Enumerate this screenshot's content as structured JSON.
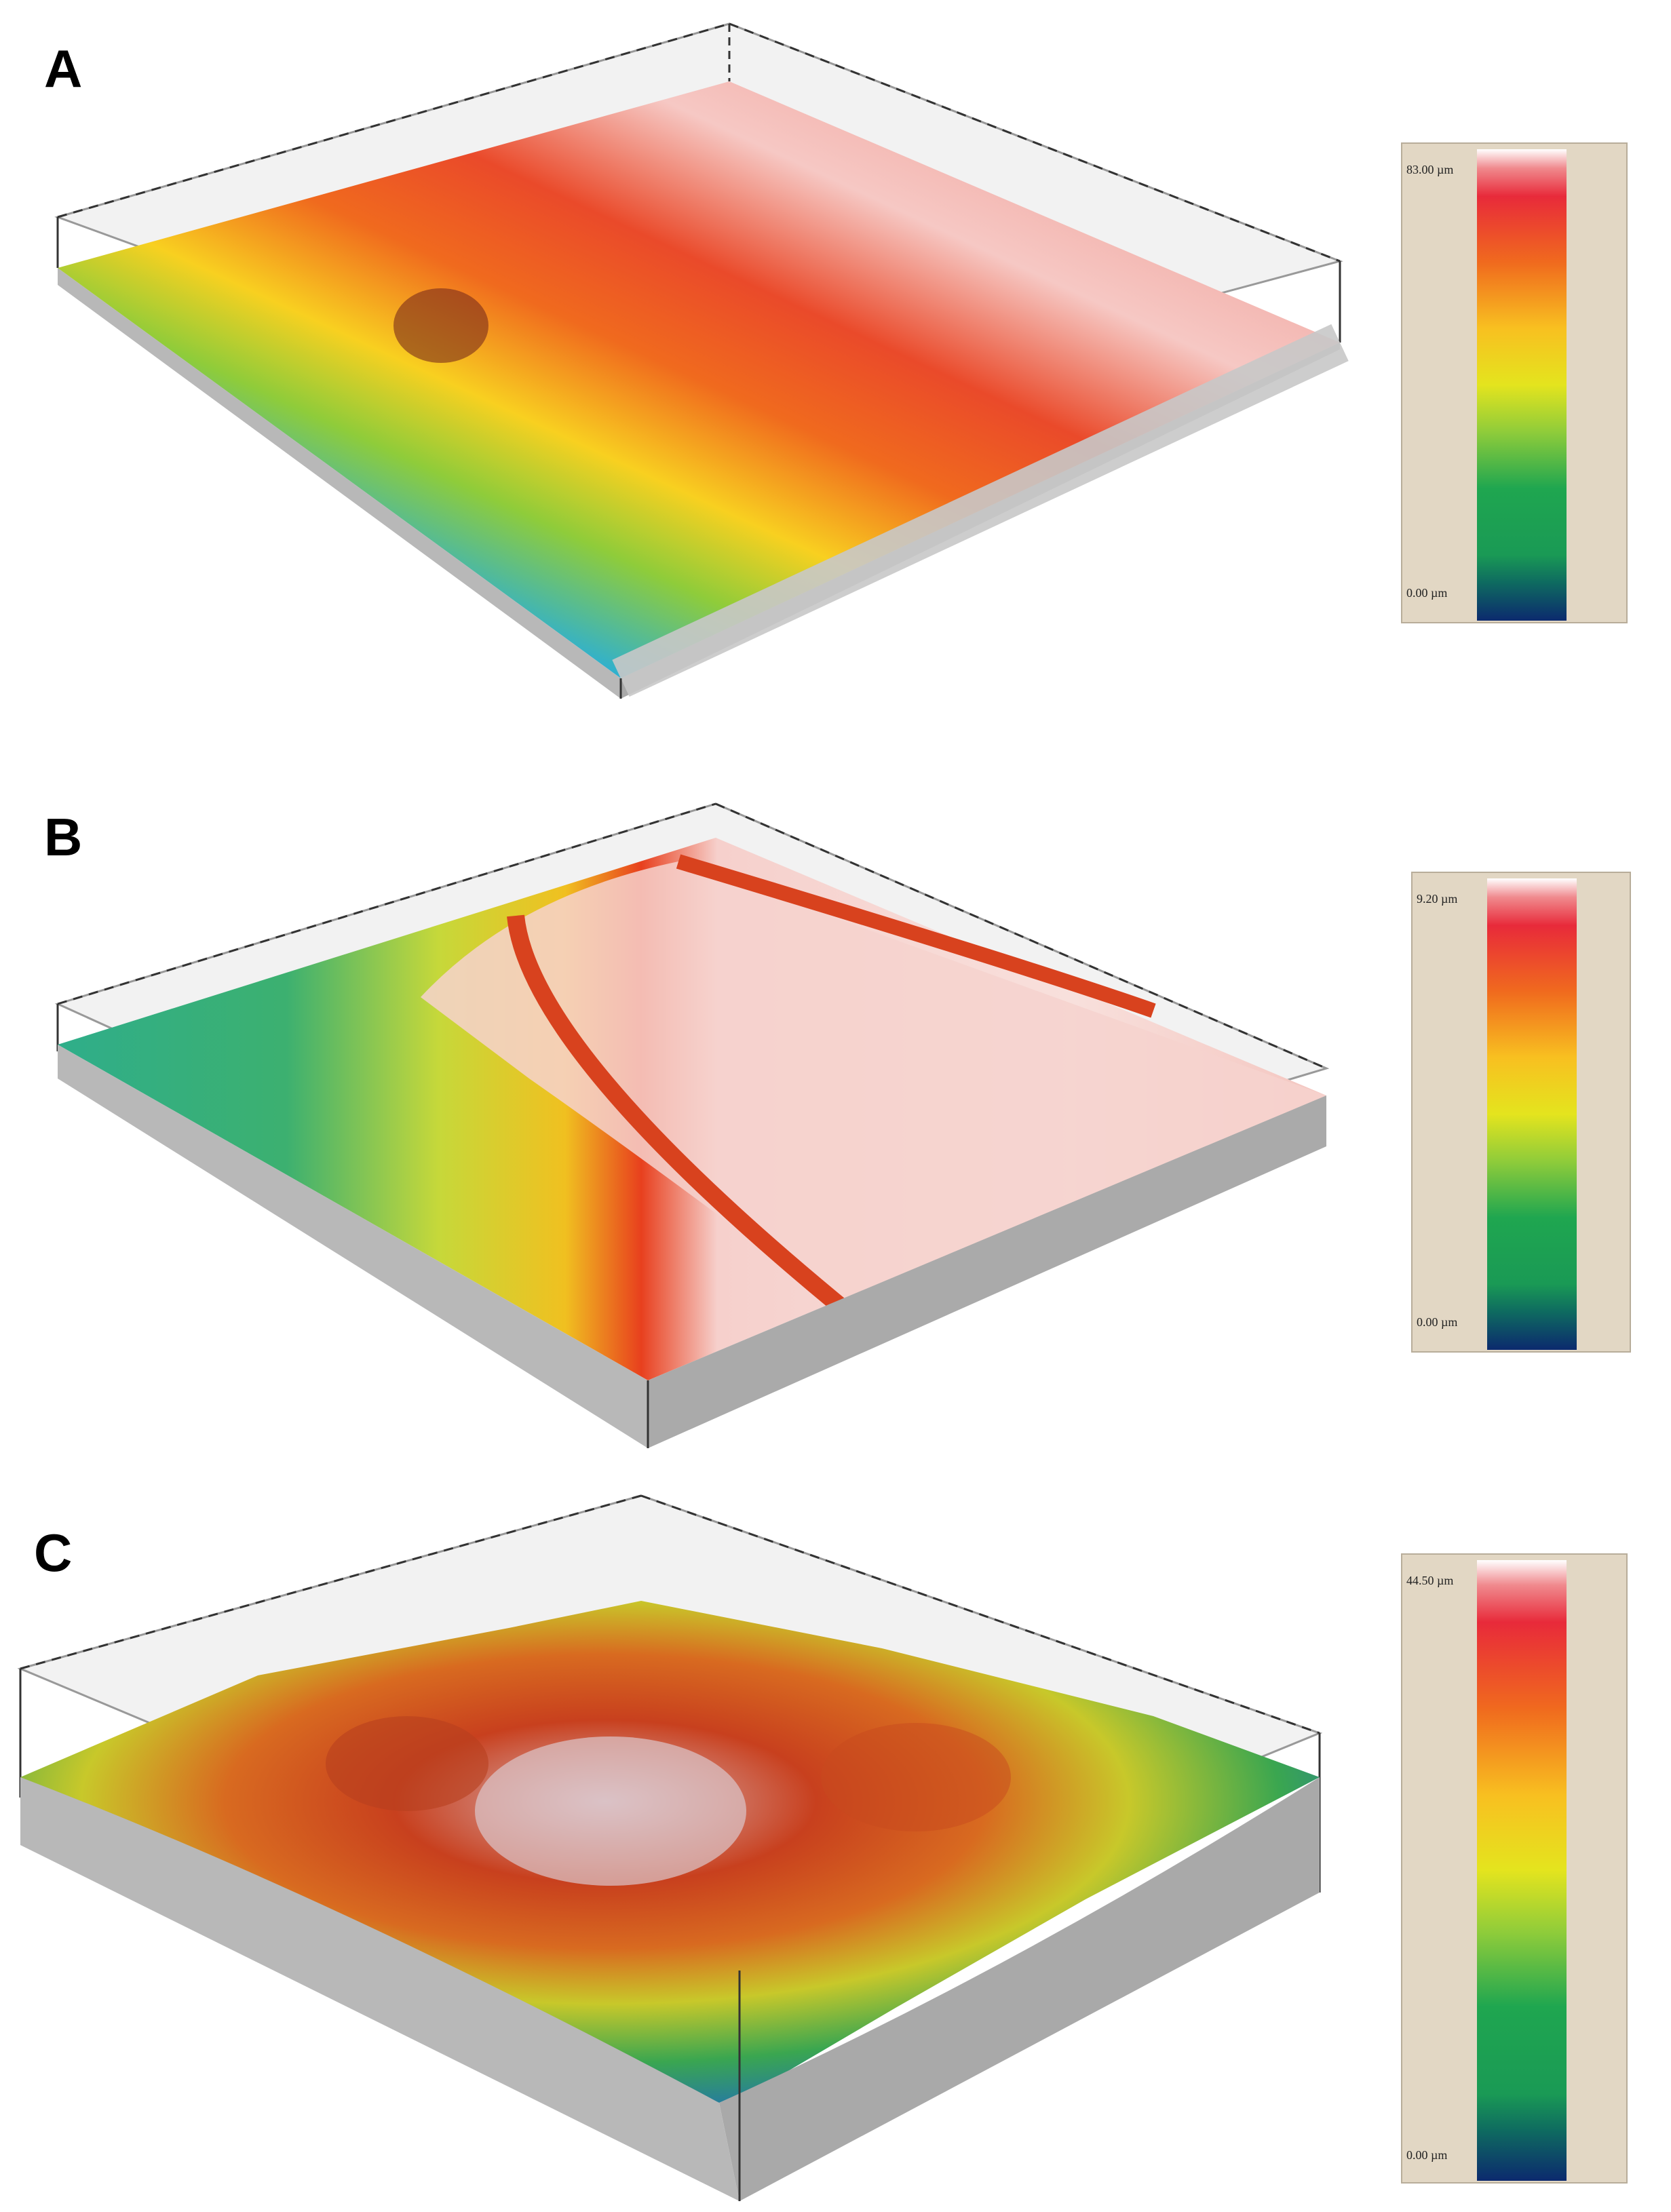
{
  "panels": [
    {
      "letter": "A",
      "scale": {
        "max": "83.00 µm",
        "min": "0.00 µm"
      }
    },
    {
      "letter": "B",
      "scale": {
        "max": "9.20 µm",
        "min": "0.00 µm"
      }
    },
    {
      "letter": "C",
      "scale": {
        "max": "44.50 µm",
        "min": "0.00 µm"
      }
    }
  ],
  "colormap": [
    "#ffffff",
    "#e8283a",
    "#f06a1e",
    "#f8c020",
    "#e4e41e",
    "#8fcc3a",
    "#1fa650",
    "#0e8a6a",
    "#0c2a6e"
  ]
}
